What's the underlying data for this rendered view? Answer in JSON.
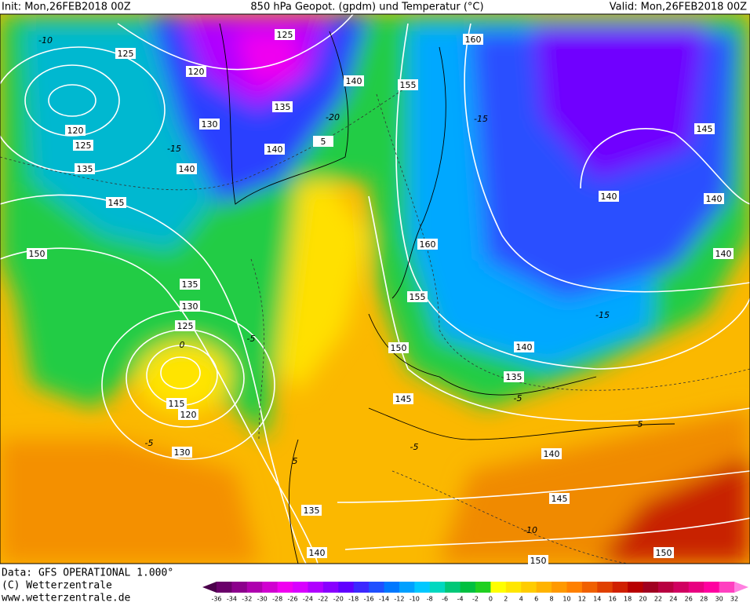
{
  "header": {
    "init": "Init: Mon,26FEB2018 00Z",
    "title": "850 hPa Geopot. (gpdm) und Temperatur (°C)",
    "valid": "Valid: Mon,26FEB2018 00Z"
  },
  "map": {
    "contour_labels": [
      "125",
      "120",
      "125",
      "140",
      "155",
      "160",
      "135",
      "130",
      "140",
      "5",
      "120",
      "125",
      "135",
      "140",
      "145",
      "150",
      "145",
      "140",
      "140",
      "140",
      "160",
      "155",
      "150",
      "140",
      "135",
      "145",
      "135",
      "130",
      "125",
      "115",
      "120",
      "130",
      "140",
      "145",
      "135",
      "140",
      "150",
      "150"
    ],
    "temperature_labels": [
      "-10",
      "-15",
      "-20",
      "-15",
      "-15",
      "-5",
      "0",
      "-5",
      "5",
      "-5",
      "-10",
      "5",
      "-5"
    ]
  },
  "footer": {
    "data": "Data: GFS OPERATIONAL 1.000°",
    "copyright": "(C) Wetterzentrale",
    "url": "www.wetterzentrale.de"
  },
  "legend": {
    "labels": [
      "-36",
      "-34",
      "-32",
      "-30",
      "-28",
      "-26",
      "-24",
      "-22",
      "-20",
      "-18",
      "-16",
      "-14",
      "-12",
      "-10",
      "-8",
      "-6",
      "-4",
      "-2",
      "0",
      "2",
      "4",
      "6",
      "8",
      "10",
      "12",
      "14",
      "16",
      "18",
      "20",
      "22",
      "24",
      "26",
      "28",
      "30",
      "32"
    ],
    "colors": [
      "#4b004b",
      "#6a006a",
      "#8c008c",
      "#ae00ae",
      "#d000d0",
      "#f000f0",
      "#d800ff",
      "#b000ff",
      "#8800ff",
      "#6000ff",
      "#3c28ff",
      "#2050ff",
      "#0078ff",
      "#00a0ff",
      "#00c8ff",
      "#00d8c0",
      "#00c878",
      "#00c040",
      "#20d020",
      "#ffff00",
      "#ffe600",
      "#ffcc00",
      "#ffb300",
      "#ff9900",
      "#ff8000",
      "#f06000",
      "#e04000",
      "#d02000",
      "#b80000",
      "#a00020",
      "#b80040",
      "#d00060",
      "#e80080",
      "#ff00a0",
      "#ff40c0",
      "#ff80e0"
    ]
  }
}
